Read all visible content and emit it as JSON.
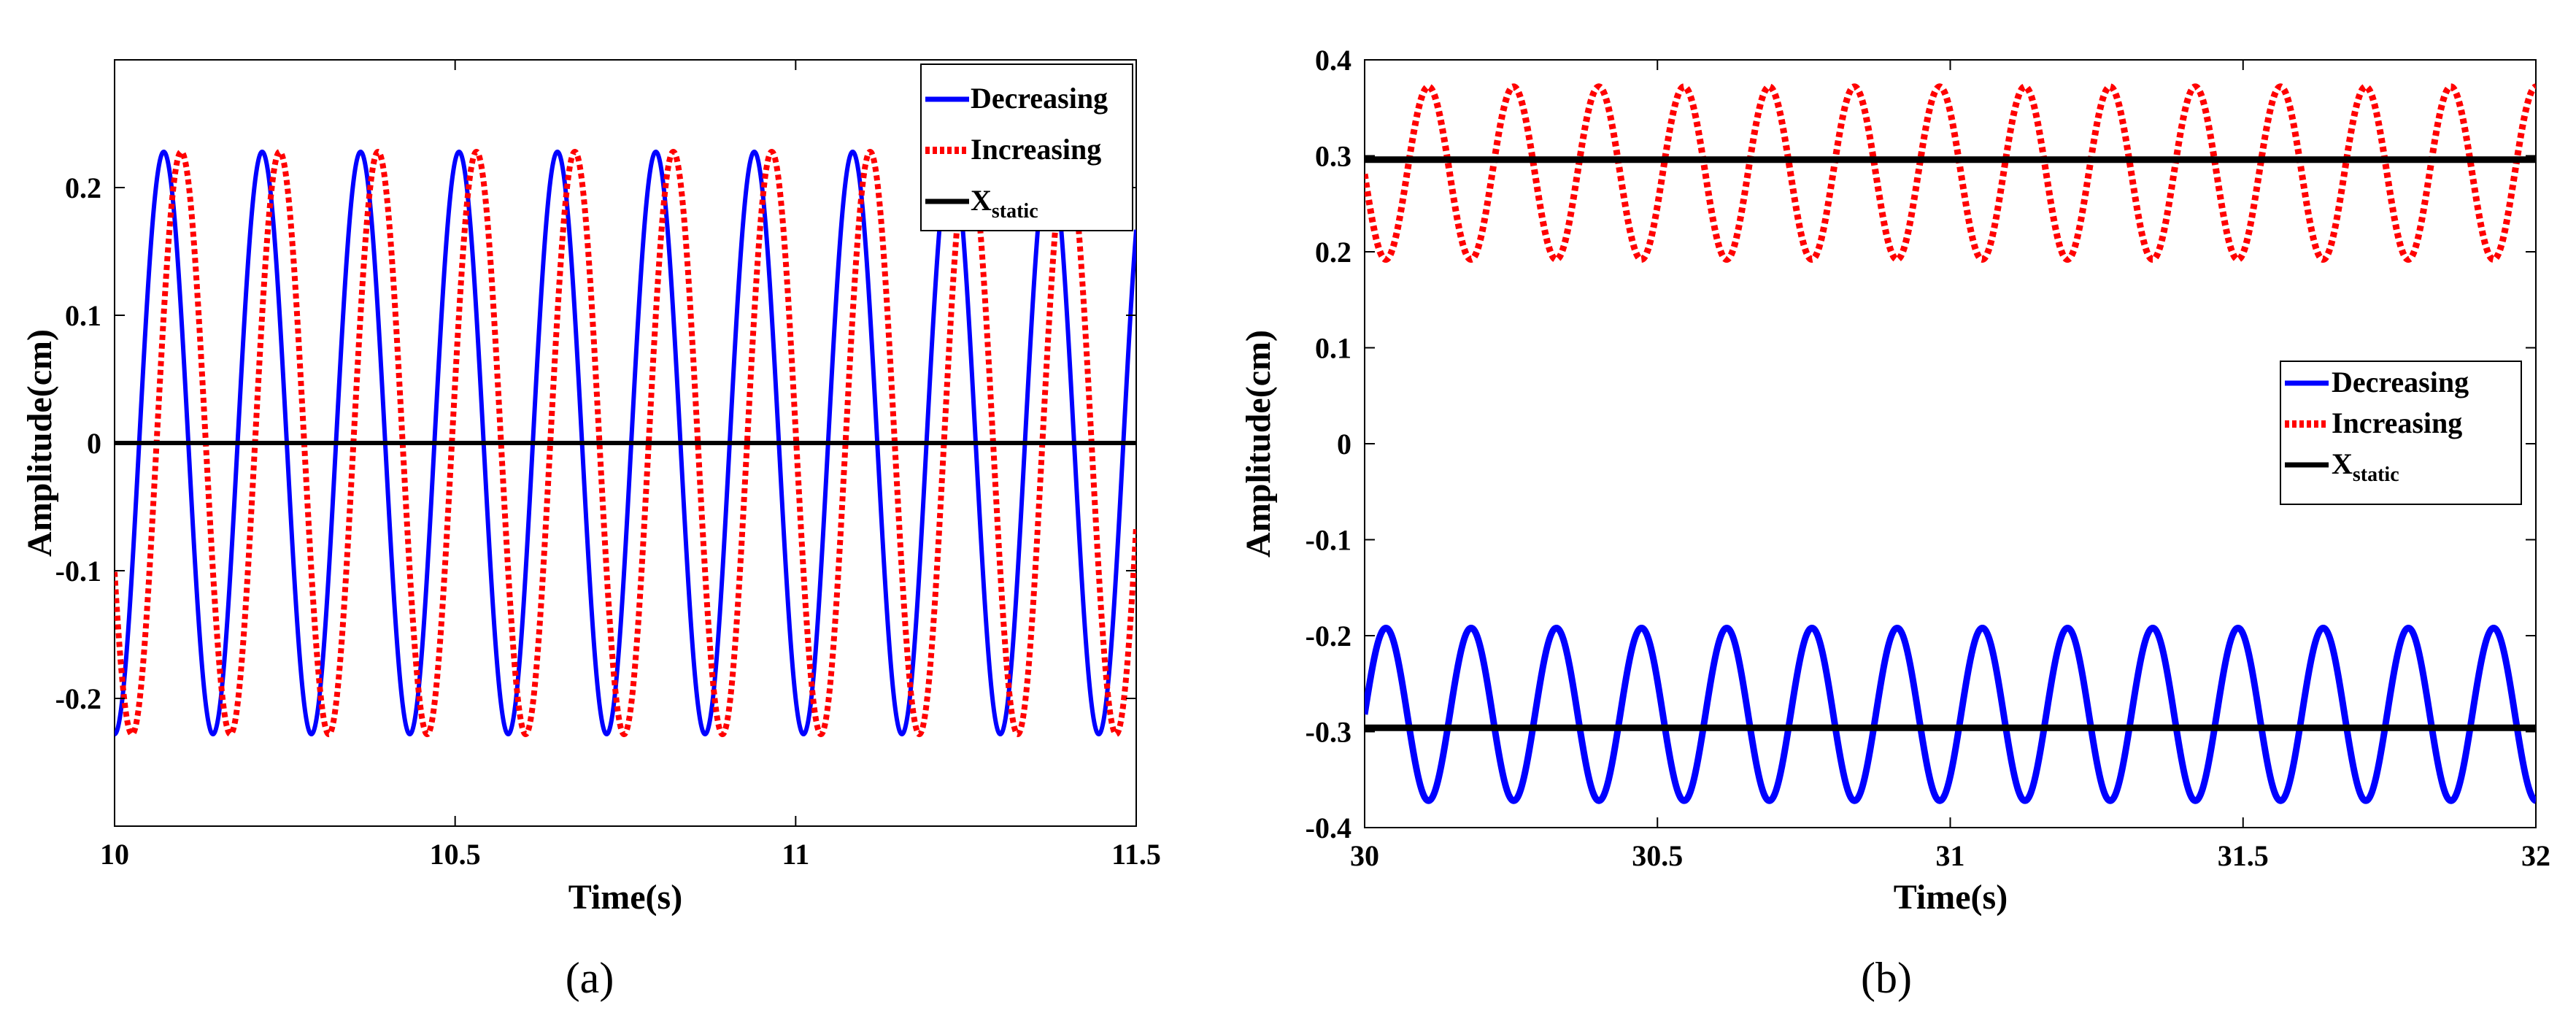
{
  "chart_data": [
    {
      "type": "line",
      "panel_caption": "(a)",
      "title": "",
      "xlabel": "Time(s)",
      "ylabel": "Amplitude(cm)",
      "xlim": [
        10,
        11.5
      ],
      "ylim": [
        -0.3,
        0.3
      ],
      "xticks": [
        10,
        10.5,
        11,
        11.5
      ],
      "xtick_labels": [
        "10",
        "10.5",
        "11",
        "11.5"
      ],
      "yticks": [
        -0.2,
        -0.1,
        0,
        0.1,
        0.2
      ],
      "ytick_labels": [
        "-0.2",
        "-0.1",
        "0",
        "0.1",
        "0.2"
      ],
      "legend_position": "top-right",
      "series": [
        {
          "name": "Decreasing",
          "color": "#0000ff",
          "style": "solid",
          "kind": "sine",
          "center": 0,
          "amplitude": 0.228,
          "period": 0.1445,
          "phase": 10.0361
        },
        {
          "name": "Increasing",
          "color": "#ff0000",
          "style": "dotted",
          "kind": "sine",
          "center": 0,
          "amplitude": 0.228,
          "period": 0.1445,
          "phase": 10.0617
        },
        {
          "name": "X",
          "name_sub": "static",
          "color": "#000000",
          "style": "solid",
          "kind": "constant",
          "value": 0
        }
      ]
    },
    {
      "type": "line",
      "panel_caption": "(b)",
      "title": "",
      "xlabel": "Time(s)",
      "ylabel": "Amplitude(cm)",
      "xlim": [
        30,
        32
      ],
      "ylim": [
        -0.4,
        0.4
      ],
      "xticks": [
        30,
        30.5,
        31,
        31.5,
        32
      ],
      "xtick_labels": [
        "30",
        "30.5",
        "31",
        "31.5",
        "32"
      ],
      "yticks": [
        -0.4,
        -0.3,
        -0.2,
        -0.1,
        0,
        0.1,
        0.2,
        0.3,
        0.4
      ],
      "ytick_labels": [
        "-0.4",
        "-0.3",
        "-0.2",
        "-0.1",
        "0",
        "0.1",
        "0.2",
        "0.3",
        "0.4"
      ],
      "legend_position": "center-right",
      "series": [
        {
          "name": "Decreasing",
          "color": "#0000ff",
          "style": "solid",
          "kind": "sine",
          "center": -0.282,
          "amplitude": 0.09,
          "period": 0.1455,
          "phase": 30.0
        },
        {
          "name": "Increasing",
          "color": "#ff0000",
          "style": "dotted",
          "kind": "sine",
          "center": 0.282,
          "amplitude": 0.09,
          "period": 0.1455,
          "phase": 29.927
        },
        {
          "name": "X",
          "name_sub": "static",
          "color": "#000000",
          "style": "solid",
          "kind": "constant",
          "value": 0.296
        },
        {
          "name": "",
          "color": "#000000",
          "style": "solid",
          "kind": "constant",
          "value": -0.296
        }
      ]
    }
  ]
}
